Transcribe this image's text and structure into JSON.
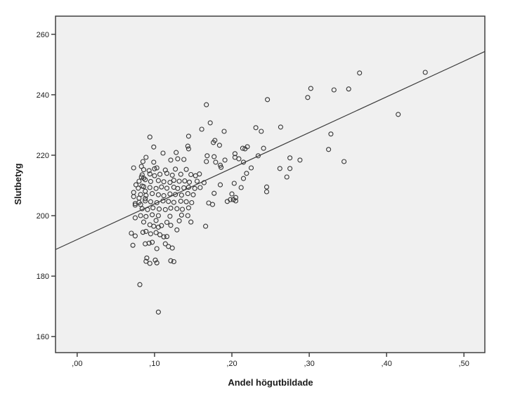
{
  "chart_data": {
    "type": "scatter",
    "title": "",
    "xlabel": "Andel högutbildade",
    "ylabel": "Slutbetyg",
    "x_tick_labels": [
      ",00",
      ",10",
      ",20",
      ",30",
      ",40",
      ",50"
    ],
    "x_tick_values": [
      0.0,
      0.1,
      0.2,
      0.3,
      0.4,
      0.5
    ],
    "y_tick_labels": [
      "160",
      "180",
      "200",
      "220",
      "240",
      "260"
    ],
    "y_tick_values": [
      160,
      180,
      200,
      220,
      240,
      260
    ],
    "x_range": [
      -0.028,
      0.527
    ],
    "y_range": [
      154.7,
      266.0
    ],
    "grid": false,
    "legend": "none",
    "marker": "open-circle",
    "panel_bg": "#f0f0f0",
    "border_color": "#404040",
    "marker_color": "#333333",
    "line_color": "#3a3a3a",
    "fit_line": {
      "x1": -0.028,
      "y1": 188.8,
      "x2": 0.527,
      "y2": 254.3,
      "equation_estimate": "y = 192.2 + 118.5x"
    },
    "points": [
      [
        0.167,
        236.7
      ],
      [
        0.172,
        230.7
      ],
      [
        0.161,
        228.6
      ],
      [
        0.19,
        227.9
      ],
      [
        0.246,
        238.4
      ],
      [
        0.298,
        239.1
      ],
      [
        0.302,
        242.1
      ],
      [
        0.332,
        241.6
      ],
      [
        0.351,
        241.9
      ],
      [
        0.365,
        247.2
      ],
      [
        0.45,
        247.4
      ],
      [
        0.415,
        233.5
      ],
      [
        0.328,
        227.0
      ],
      [
        0.325,
        221.9
      ],
      [
        0.345,
        217.9
      ],
      [
        0.081,
        177.2
      ],
      [
        0.105,
        168.1
      ],
      [
        0.094,
        226.0
      ],
      [
        0.144,
        226.3
      ],
      [
        0.099,
        222.7
      ],
      [
        0.111,
        220.7
      ],
      [
        0.144,
        222.1
      ],
      [
        0.178,
        224.9
      ],
      [
        0.184,
        223.3
      ],
      [
        0.191,
        218.4
      ],
      [
        0.128,
        220.9
      ],
      [
        0.13,
        218.8
      ],
      [
        0.121,
        218.4
      ],
      [
        0.138,
        218.6
      ],
      [
        0.089,
        219.3
      ],
      [
        0.085,
        217.9
      ],
      [
        0.099,
        217.7
      ],
      [
        0.168,
        219.8
      ],
      [
        0.167,
        217.9
      ],
      [
        0.177,
        219.5
      ],
      [
        0.179,
        217.7
      ],
      [
        0.185,
        216.7
      ],
      [
        0.186,
        216.0
      ],
      [
        0.083,
        216.3
      ],
      [
        0.093,
        214.9
      ],
      [
        0.103,
        215.8
      ],
      [
        0.176,
        224.2
      ],
      [
        0.143,
        223.0
      ],
      [
        0.231,
        229.1
      ],
      [
        0.238,
        227.9
      ],
      [
        0.263,
        229.3
      ],
      [
        0.241,
        222.3
      ],
      [
        0.214,
        222.3
      ],
      [
        0.217,
        222.1
      ],
      [
        0.22,
        222.8
      ],
      [
        0.204,
        220.5
      ],
      [
        0.204,
        219.3
      ],
      [
        0.209,
        218.8
      ],
      [
        0.215,
        217.7
      ],
      [
        0.234,
        219.8
      ],
      [
        0.225,
        215.8
      ],
      [
        0.219,
        214.0
      ],
      [
        0.215,
        212.3
      ],
      [
        0.262,
        215.6
      ],
      [
        0.275,
        219.1
      ],
      [
        0.275,
        215.6
      ],
      [
        0.288,
        218.4
      ],
      [
        0.271,
        212.8
      ],
      [
        0.203,
        210.7
      ],
      [
        0.212,
        209.3
      ],
      [
        0.245,
        209.5
      ],
      [
        0.245,
        207.9
      ],
      [
        0.2,
        207.2
      ],
      [
        0.205,
        206.0
      ],
      [
        0.205,
        204.9
      ],
      [
        0.202,
        205.3
      ],
      [
        0.083,
        212.8
      ],
      [
        0.086,
        212.4
      ],
      [
        0.084,
        209.8
      ],
      [
        0.088,
        208.1
      ],
      [
        0.073,
        206.3
      ],
      [
        0.08,
        205.8
      ],
      [
        0.088,
        205.6
      ],
      [
        0.075,
        204.0
      ],
      [
        0.082,
        203.7
      ],
      [
        0.073,
        215.8
      ],
      [
        0.086,
        215.2
      ],
      [
        0.1,
        215.5
      ],
      [
        0.114,
        215.1
      ],
      [
        0.127,
        215.4
      ],
      [
        0.141,
        215.3
      ],
      [
        0.084,
        213.5
      ],
      [
        0.094,
        213.8
      ],
      [
        0.1,
        213.2
      ],
      [
        0.107,
        213.7
      ],
      [
        0.116,
        214.0
      ],
      [
        0.123,
        213.4
      ],
      [
        0.134,
        213.7
      ],
      [
        0.147,
        213.6
      ],
      [
        0.153,
        213.2
      ],
      [
        0.158,
        213.8
      ],
      [
        0.08,
        211.4
      ],
      [
        0.088,
        211.9
      ],
      [
        0.095,
        211.3
      ],
      [
        0.105,
        211.6
      ],
      [
        0.112,
        211.2
      ],
      [
        0.12,
        211.0
      ],
      [
        0.125,
        211.7
      ],
      [
        0.132,
        211.4
      ],
      [
        0.139,
        211.5
      ],
      [
        0.145,
        211.1
      ],
      [
        0.155,
        211.4
      ],
      [
        0.164,
        210.9
      ],
      [
        0.079,
        209.1
      ],
      [
        0.086,
        209.6
      ],
      [
        0.094,
        209.3
      ],
      [
        0.102,
        209.0
      ],
      [
        0.109,
        209.5
      ],
      [
        0.116,
        209.1
      ],
      [
        0.125,
        209.4
      ],
      [
        0.13,
        209.0
      ],
      [
        0.138,
        209.2
      ],
      [
        0.144,
        209.4
      ],
      [
        0.152,
        209.0
      ],
      [
        0.159,
        209.3
      ],
      [
        0.082,
        207.0
      ],
      [
        0.089,
        206.7
      ],
      [
        0.097,
        207.3
      ],
      [
        0.105,
        206.9
      ],
      [
        0.112,
        206.6
      ],
      [
        0.12,
        207.2
      ],
      [
        0.127,
        207.0
      ],
      [
        0.135,
        206.8
      ],
      [
        0.143,
        207.3
      ],
      [
        0.15,
        206.9
      ],
      [
        0.08,
        204.4
      ],
      [
        0.088,
        204.9
      ],
      [
        0.095,
        204.6
      ],
      [
        0.103,
        204.3
      ],
      [
        0.111,
        204.9
      ],
      [
        0.118,
        204.7
      ],
      [
        0.125,
        204.4
      ],
      [
        0.134,
        204.8
      ],
      [
        0.141,
        204.6
      ],
      [
        0.148,
        204.3
      ],
      [
        0.084,
        202.3
      ],
      [
        0.091,
        202.0
      ],
      [
        0.098,
        202.6
      ],
      [
        0.106,
        202.2
      ],
      [
        0.114,
        202.0
      ],
      [
        0.121,
        202.5
      ],
      [
        0.129,
        202.3
      ],
      [
        0.136,
        202.1
      ],
      [
        0.144,
        202.6
      ],
      [
        0.082,
        200.0
      ],
      [
        0.089,
        199.7
      ],
      [
        0.097,
        200.3
      ],
      [
        0.105,
        200.0
      ],
      [
        0.12,
        199.8
      ],
      [
        0.135,
        200.2
      ],
      [
        0.143,
        200.0
      ],
      [
        0.086,
        197.9
      ],
      [
        0.102,
        198.4
      ],
      [
        0.116,
        197.8
      ],
      [
        0.132,
        198.3
      ],
      [
        0.147,
        197.9
      ],
      [
        0.076,
        210.2
      ],
      [
        0.185,
        210.2
      ],
      [
        0.194,
        204.7
      ],
      [
        0.198,
        205.3
      ],
      [
        0.17,
        204.2
      ],
      [
        0.175,
        203.7
      ],
      [
        0.177,
        207.4
      ],
      [
        0.073,
        207.7
      ],
      [
        0.075,
        203.5
      ],
      [
        0.075,
        199.3
      ],
      [
        0.094,
        197.0
      ],
      [
        0.099,
        196.5
      ],
      [
        0.105,
        196.2
      ],
      [
        0.109,
        196.7
      ],
      [
        0.121,
        196.8
      ],
      [
        0.129,
        195.3
      ],
      [
        0.166,
        196.5
      ],
      [
        0.07,
        194.2
      ],
      [
        0.075,
        193.3
      ],
      [
        0.085,
        194.5
      ],
      [
        0.089,
        194.8
      ],
      [
        0.095,
        194.0
      ],
      [
        0.102,
        194.4
      ],
      [
        0.107,
        193.7
      ],
      [
        0.112,
        193.0
      ],
      [
        0.116,
        193.1
      ],
      [
        0.072,
        190.2
      ],
      [
        0.088,
        190.7
      ],
      [
        0.093,
        190.9
      ],
      [
        0.097,
        191.2
      ],
      [
        0.103,
        189.1
      ],
      [
        0.114,
        190.7
      ],
      [
        0.118,
        189.8
      ],
      [
        0.123,
        189.3
      ],
      [
        0.09,
        186.0
      ],
      [
        0.101,
        185.3
      ],
      [
        0.121,
        185.1
      ],
      [
        0.125,
        184.8
      ],
      [
        0.089,
        184.9
      ],
      [
        0.094,
        184.2
      ],
      [
        0.103,
        184.4
      ]
    ]
  }
}
